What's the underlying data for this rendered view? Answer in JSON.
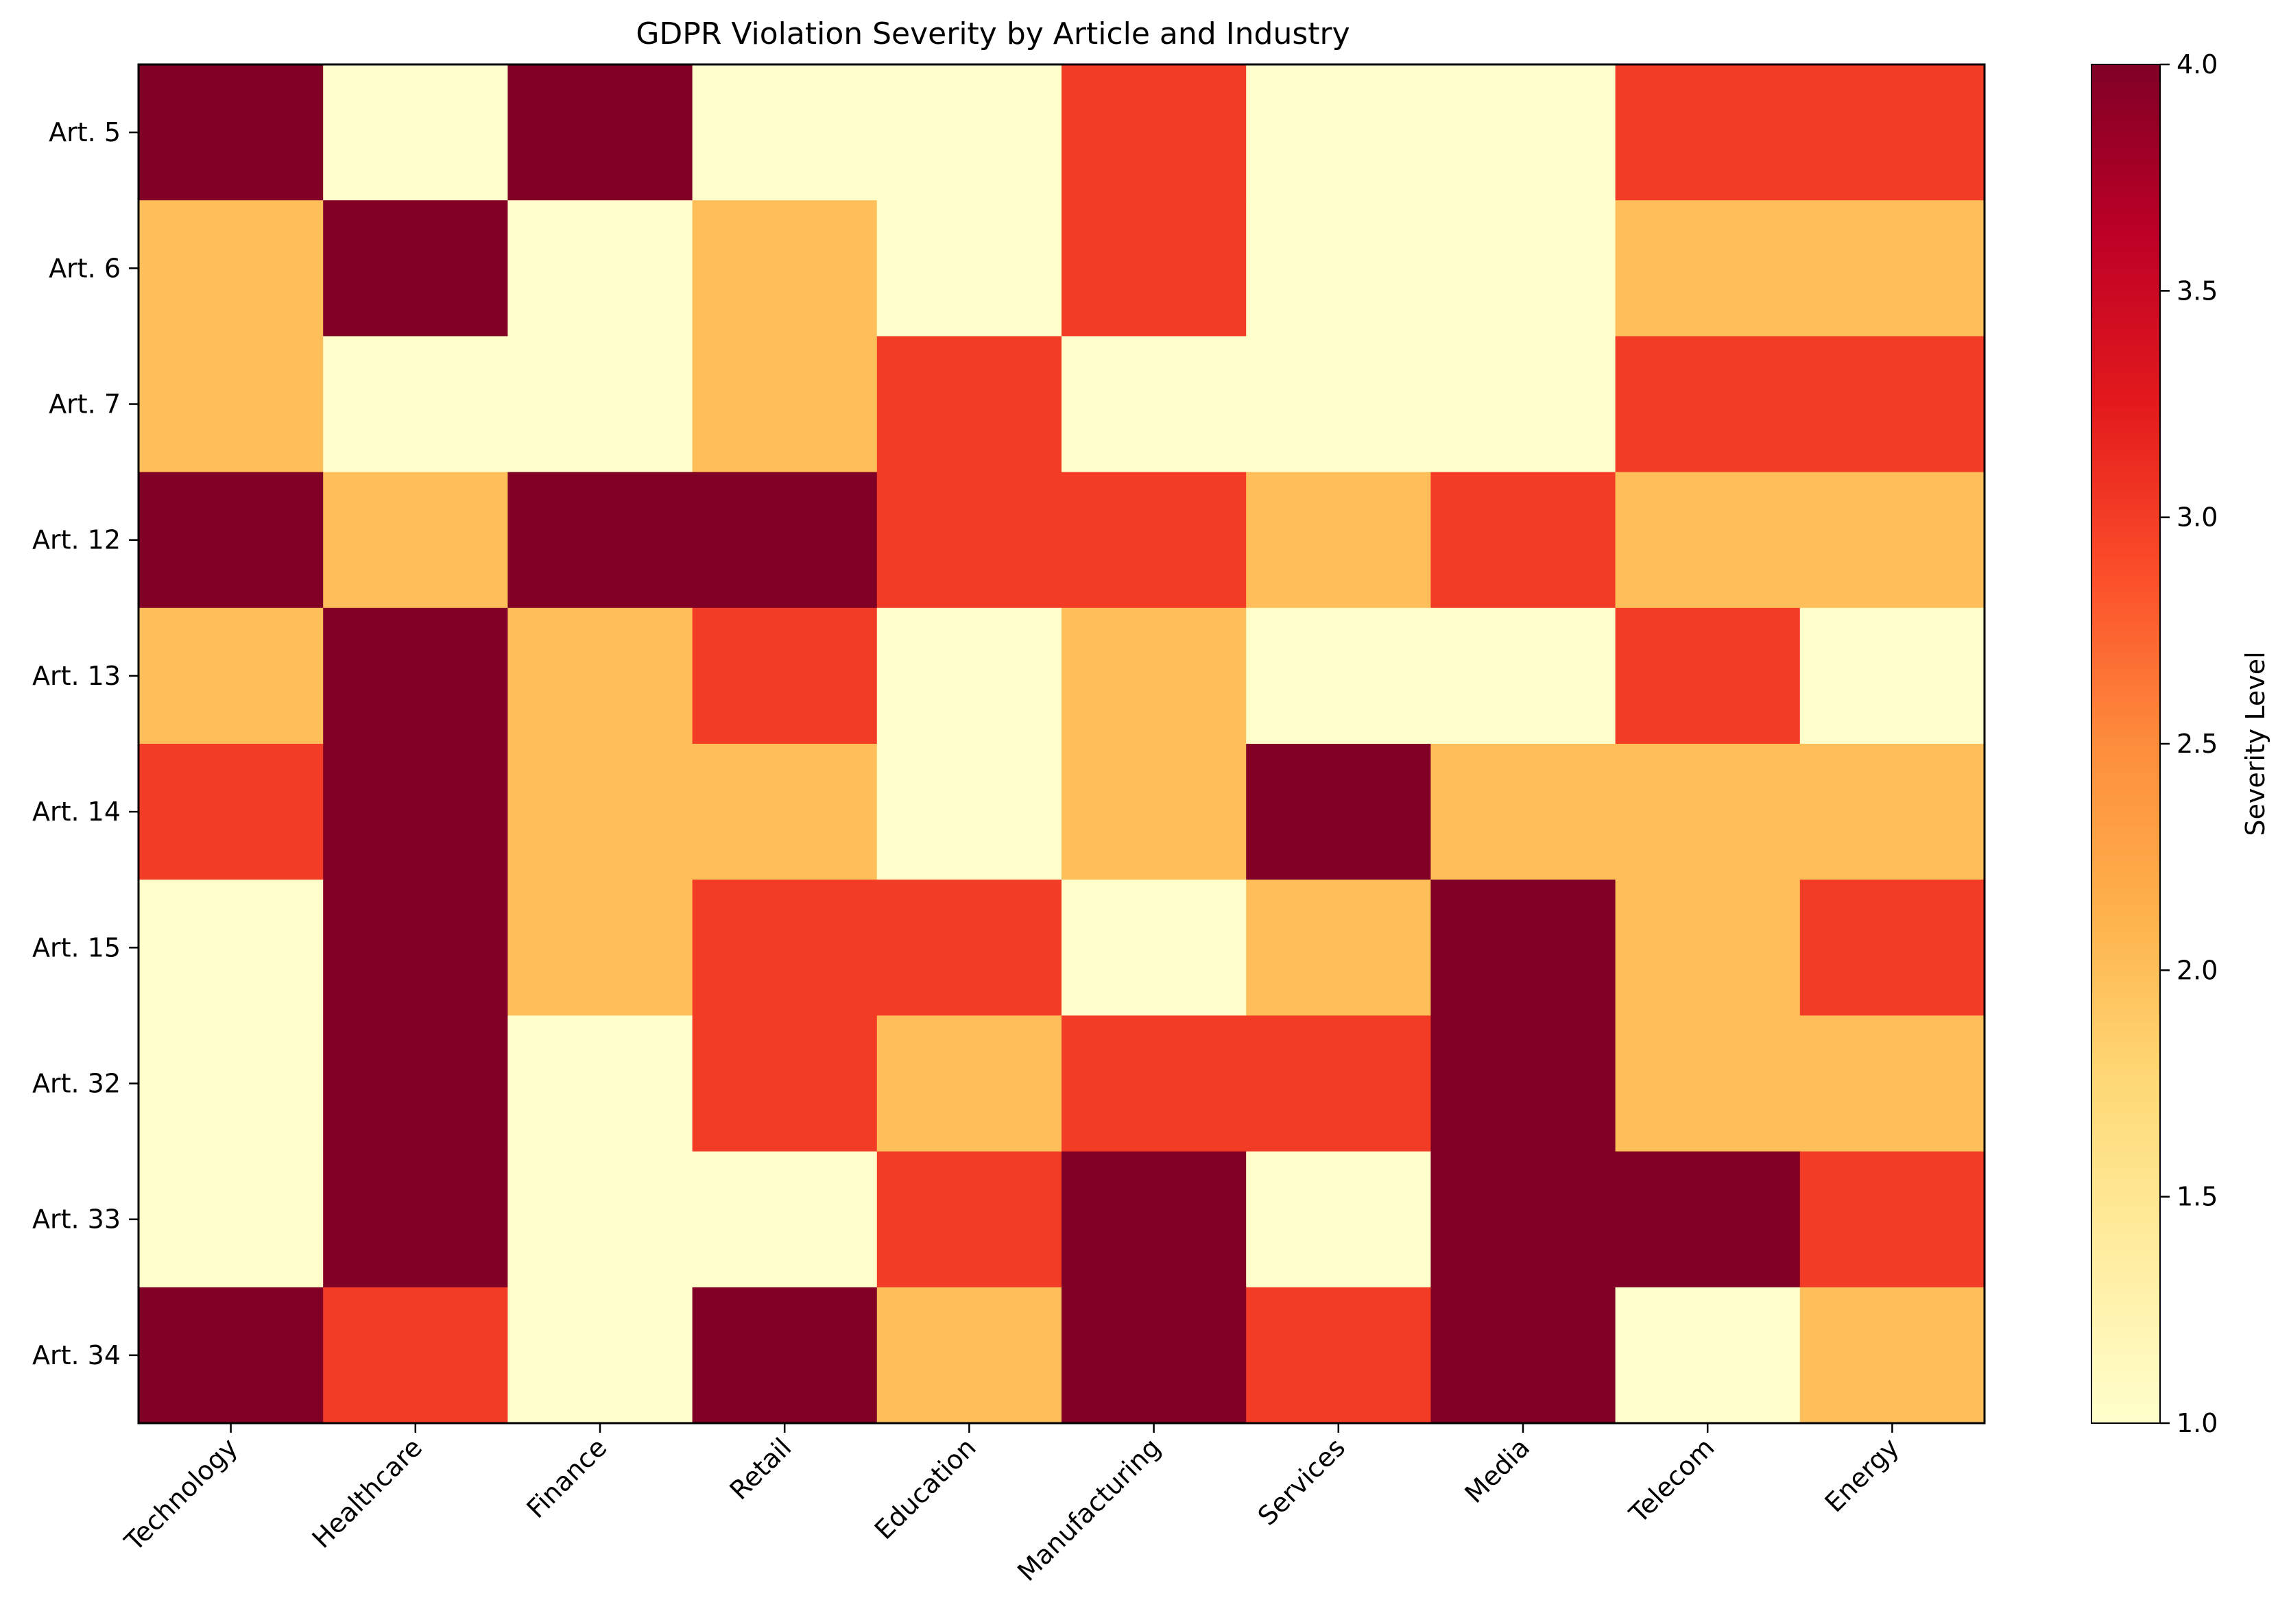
{
  "chart_data": {
    "type": "heatmap",
    "title": "GDPR Violation Severity by Article and Industry",
    "x_categories": [
      "Technology",
      "Healthcare",
      "Finance",
      "Retail",
      "Education",
      "Manufacturing",
      "Services",
      "Media",
      "Telecom",
      "Energy"
    ],
    "y_categories": [
      "Art. 5",
      "Art. 6",
      "Art. 7",
      "Art. 12",
      "Art. 13",
      "Art. 14",
      "Art. 15",
      "Art. 32",
      "Art. 33",
      "Art. 34"
    ],
    "values": [
      [
        4,
        1,
        4,
        1,
        1,
        3,
        1,
        1,
        3,
        3
      ],
      [
        2,
        4,
        1,
        2,
        1,
        3,
        1,
        1,
        2,
        2
      ],
      [
        2,
        1,
        1,
        2,
        3,
        1,
        1,
        1,
        3,
        3
      ],
      [
        4,
        2,
        4,
        4,
        3,
        3,
        2,
        3,
        2,
        2
      ],
      [
        2,
        4,
        2,
        3,
        1,
        2,
        1,
        1,
        3,
        1
      ],
      [
        3,
        4,
        2,
        2,
        1,
        2,
        4,
        2,
        2,
        2
      ],
      [
        1,
        4,
        2,
        3,
        3,
        1,
        2,
        4,
        2,
        3
      ],
      [
        1,
        4,
        1,
        3,
        2,
        3,
        3,
        4,
        2,
        2
      ],
      [
        1,
        4,
        1,
        1,
        3,
        4,
        1,
        4,
        4,
        3
      ],
      [
        4,
        3,
        1,
        4,
        2,
        4,
        3,
        4,
        1,
        2
      ]
    ],
    "colormap": "YlOrRd",
    "colors": {
      "1": "#ffffcc",
      "2": "#febf5a",
      "3": "#f33c25",
      "4": "#800026"
    },
    "colorbar": {
      "label": "Severity Level",
      "range": [
        1.0,
        4.0
      ],
      "ticks": [
        "1.0",
        "1.5",
        "2.0",
        "2.5",
        "3.0",
        "3.5",
        "4.0"
      ]
    }
  }
}
